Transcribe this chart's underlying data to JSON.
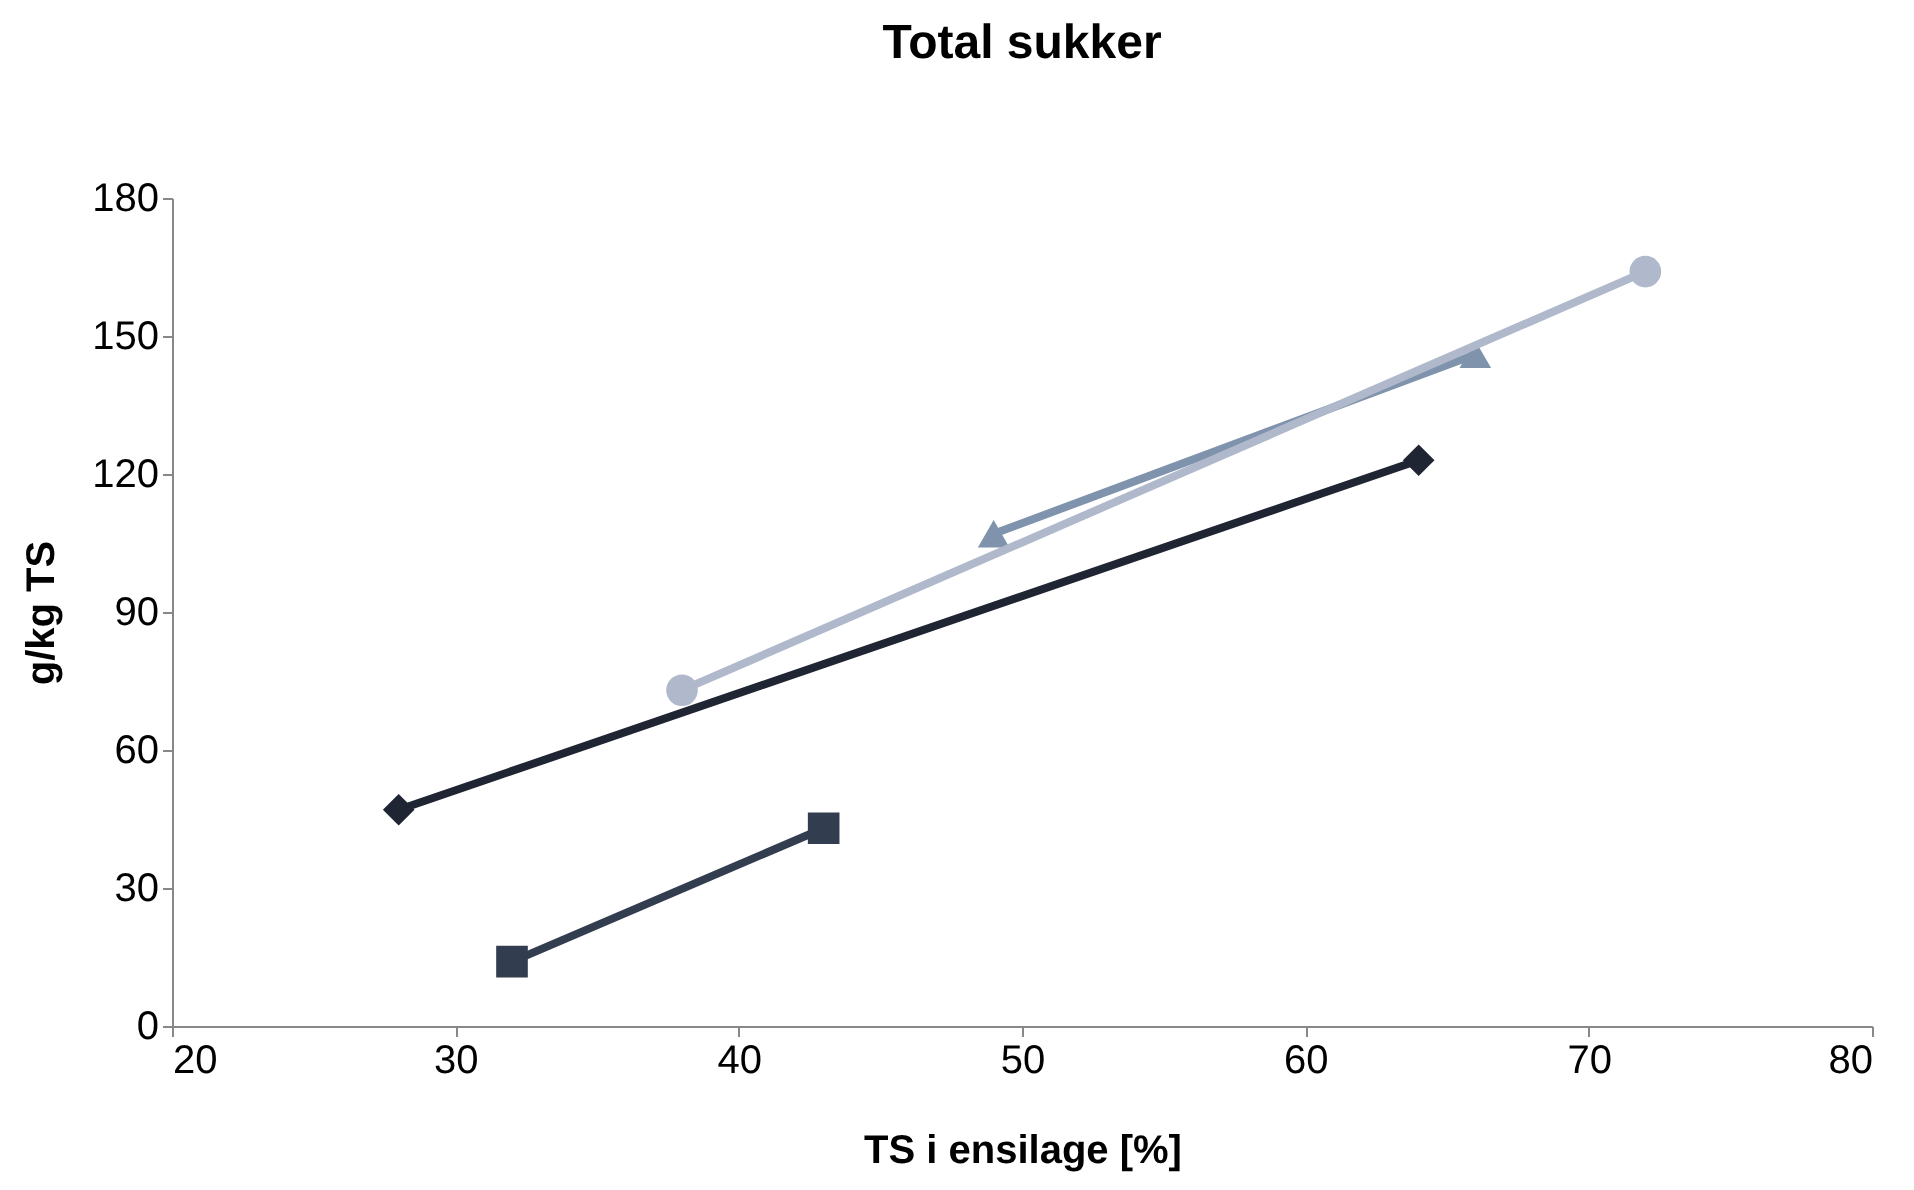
{
  "chart_data": {
    "type": "line",
    "title": "Total sukker",
    "xlabel": "TS i ensilage [%]",
    "ylabel": "g/kg TS",
    "xlim": [
      20,
      80
    ],
    "xticks": [
      20,
      30,
      40,
      50,
      60,
      70,
      80
    ],
    "ylim": [
      0,
      180
    ],
    "yticks": [
      0,
      30,
      60,
      90,
      120,
      150,
      180
    ],
    "grid": false,
    "legend": false,
    "series": [
      {
        "color": "#1f2533",
        "x": [
          28,
          64
        ],
        "values": [
          47,
          123
        ],
        "marker": "diamond"
      },
      {
        "color": "#333d50",
        "x": [
          32,
          43
        ],
        "values": [
          14,
          43
        ],
        "marker": "square"
      },
      {
        "color": "#7f93ad",
        "x": [
          49,
          66
        ],
        "values": [
          107,
          146
        ],
        "marker": "triangle"
      },
      {
        "color": "#b0b9cb",
        "x": [
          38,
          72
        ],
        "values": [
          73,
          164
        ],
        "marker": "circle"
      }
    ]
  }
}
